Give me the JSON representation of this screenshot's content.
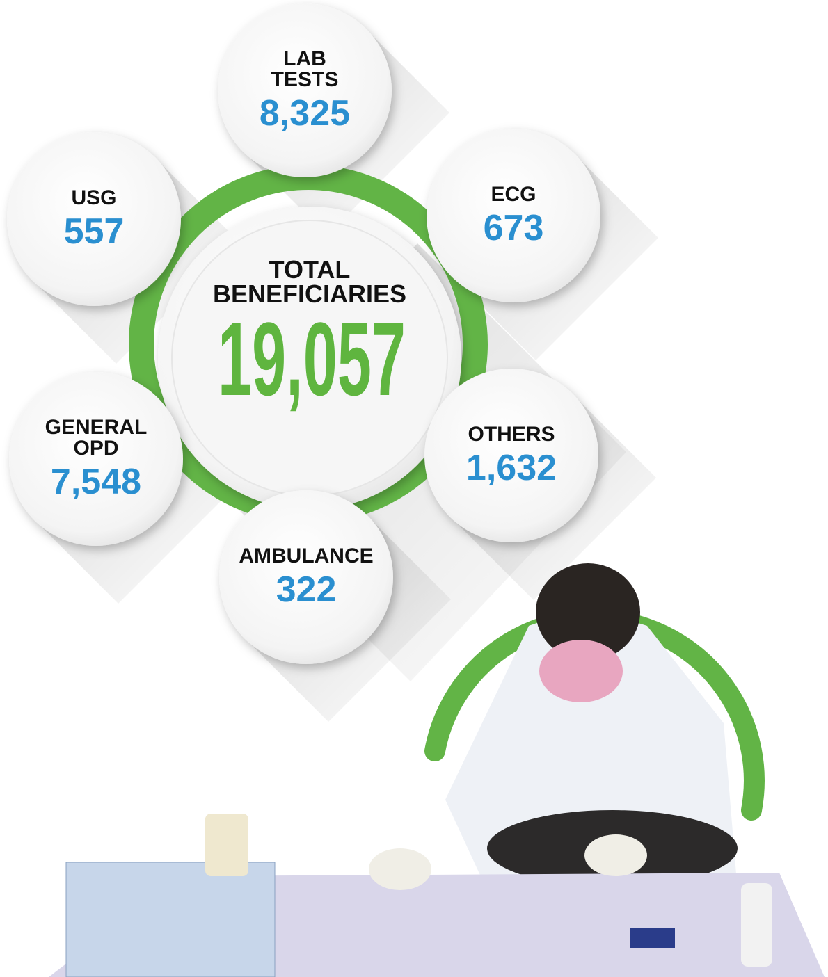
{
  "center": {
    "label_lines": [
      "TOTAL",
      "BENEFICIARIES"
    ],
    "value": "19,057"
  },
  "items": [
    {
      "label_lines": [
        "LAB",
        "TESTS"
      ],
      "value": "8,325"
    },
    {
      "label_lines": [
        "USG"
      ],
      "value": "557"
    },
    {
      "label_lines": [
        "ECG"
      ],
      "value": "673"
    },
    {
      "label_lines": [
        "GENERAL",
        "OPD"
      ],
      "value": "7,548"
    },
    {
      "label_lines": [
        "OTHERS"
      ],
      "value": "1,632"
    },
    {
      "label_lines": [
        "AMBULANCE"
      ],
      "value": "322"
    }
  ]
}
